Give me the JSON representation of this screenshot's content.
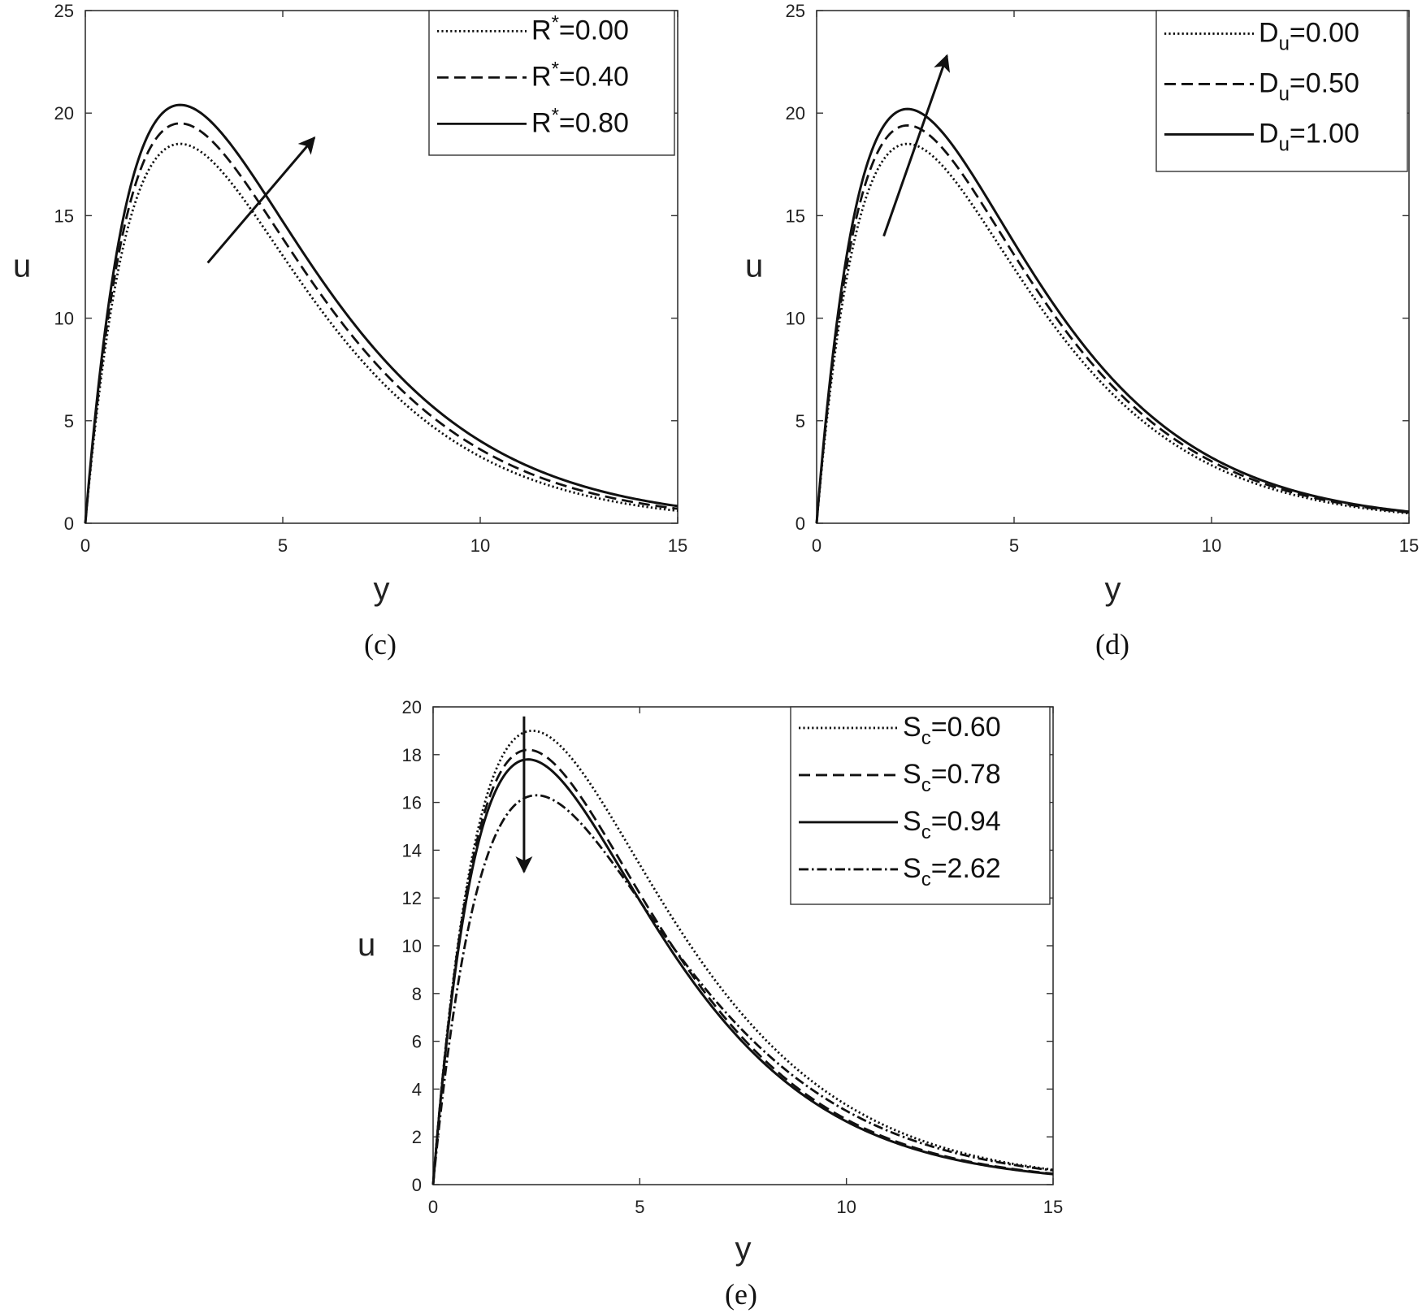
{
  "chart_data": [
    {
      "type": "line",
      "panel": "c",
      "caption": "(c)",
      "xlabel": "y",
      "ylabel": "u",
      "xlim": [
        0,
        15
      ],
      "ylim": [
        0,
        25
      ],
      "xticks": [
        0,
        5,
        10,
        15
      ],
      "yticks": [
        0,
        5,
        10,
        15,
        20,
        25
      ],
      "grid": false,
      "legend_position": "top-right",
      "series": [
        {
          "name": "R*=0.00",
          "legend": {
            "base": "R",
            "mod": "*",
            "mod_type": "sup",
            "value": "=0.00"
          },
          "style": "dotted",
          "peak_x": 2.4,
          "peak_y": 18.5,
          "decay": 1.0
        },
        {
          "name": "R*=0.40",
          "legend": {
            "base": "R",
            "mod": "*",
            "mod_type": "sup",
            "value": "=0.40"
          },
          "style": "dashed",
          "peak_x": 2.4,
          "peak_y": 19.5,
          "decay": 1.03
        },
        {
          "name": "R*=0.80",
          "legend": {
            "base": "R",
            "mod": "*",
            "mod_type": "sup",
            "value": "=0.80"
          },
          "style": "solid",
          "peak_x": 2.4,
          "peak_y": 20.4,
          "decay": 1.07
        }
      ],
      "arrow": {
        "from": [
          3.1,
          12.7
        ],
        "to": [
          5.8,
          18.8
        ],
        "meaning": "increasing"
      }
    },
    {
      "type": "line",
      "panel": "d",
      "caption": "(d)",
      "xlabel": "y",
      "ylabel": "u",
      "xlim": [
        0,
        15
      ],
      "ylim": [
        0,
        25
      ],
      "xticks": [
        0,
        5,
        10,
        15
      ],
      "yticks": [
        0,
        5,
        10,
        15,
        20,
        25
      ],
      "grid": false,
      "legend_position": "top-right",
      "series": [
        {
          "name": "Du=0.00",
          "legend": {
            "base": "D",
            "mod": "u",
            "mod_type": "sub",
            "value": "=0.00"
          },
          "style": "dotted",
          "peak_x": 2.3,
          "peak_y": 18.5,
          "decay": 1.0
        },
        {
          "name": "Du=0.50",
          "legend": {
            "base": "D",
            "mod": "u",
            "mod_type": "sub",
            "value": "=0.50"
          },
          "style": "dashed",
          "peak_x": 2.3,
          "peak_y": 19.4,
          "decay": 1.01
        },
        {
          "name": "Du=1.00",
          "legend": {
            "base": "D",
            "mod": "u",
            "mod_type": "sub",
            "value": "=1.00"
          },
          "style": "solid",
          "peak_x": 2.3,
          "peak_y": 20.2,
          "decay": 1.02
        }
      ],
      "arrow": {
        "from": [
          1.7,
          14.0
        ],
        "to": [
          3.3,
          22.8
        ],
        "meaning": "increasing"
      }
    },
    {
      "type": "line",
      "panel": "e",
      "caption": "(e)",
      "xlabel": "y",
      "ylabel": "u",
      "xlim": [
        0,
        15
      ],
      "ylim": [
        0,
        20
      ],
      "xticks": [
        0,
        5,
        10,
        15
      ],
      "yticks": [
        0,
        2,
        4,
        6,
        8,
        10,
        12,
        14,
        16,
        18,
        20
      ],
      "grid": false,
      "legend_position": "top-right",
      "series": [
        {
          "name": "Sc=0.60",
          "legend": {
            "base": "S",
            "mod": "c",
            "mod_type": "sub",
            "value": "=0.60"
          },
          "style": "dotted",
          "peak_x": 2.4,
          "peak_y": 19.0,
          "decay": 1.0
        },
        {
          "name": "Sc=0.78",
          "legend": {
            "base": "S",
            "mod": "c",
            "mod_type": "sub",
            "value": "=0.78"
          },
          "style": "dashed",
          "peak_x": 2.3,
          "peak_y": 18.2,
          "decay": 0.99
        },
        {
          "name": "Sc=0.94",
          "legend": {
            "base": "S",
            "mod": "c",
            "mod_type": "sub",
            "value": "=0.94"
          },
          "style": "solid",
          "peak_x": 2.3,
          "peak_y": 17.8,
          "decay": 0.985
        },
        {
          "name": "Sc=2.62",
          "legend": {
            "base": "S",
            "mod": "c",
            "mod_type": "sub",
            "value": "=2.62"
          },
          "style": "dashdot",
          "peak_x": 2.5,
          "peak_y": 16.3,
          "decay": 0.97
        }
      ],
      "arrow": {
        "from": [
          2.2,
          19.6
        ],
        "to": [
          2.2,
          13.1
        ],
        "meaning": "decreasing"
      }
    }
  ]
}
